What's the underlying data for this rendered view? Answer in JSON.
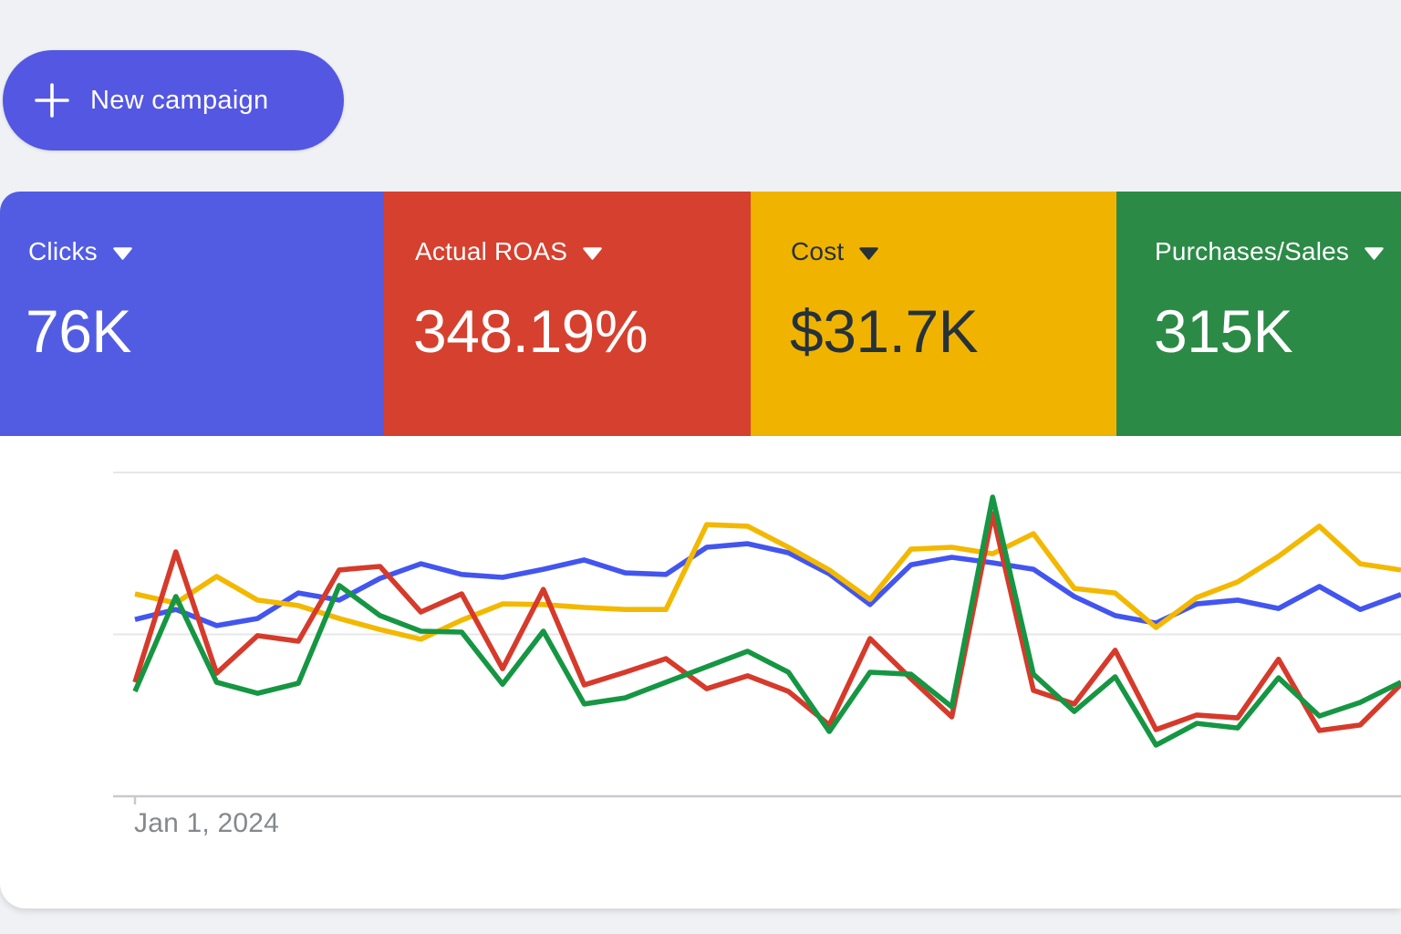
{
  "page": {
    "background": "#EFF1F4"
  },
  "new_campaign_button": {
    "label": "New campaign",
    "bg": "#5457E2"
  },
  "metric_cards": [
    {
      "id": "clicks",
      "label": "Clicks",
      "value": "76K",
      "bg": "#525CE3",
      "text_color": "#FFFFFF"
    },
    {
      "id": "actual-roas",
      "label": "Actual ROAS",
      "value": "348.19%",
      "bg": "#D6402F",
      "text_color": "#FFFFFF"
    },
    {
      "id": "cost",
      "label": "Cost",
      "value": "$31.7K",
      "bg": "#F0B400",
      "text_color": "#263238"
    },
    {
      "id": "purchases-sales",
      "label": "Purchases/Sales",
      "value": "315K",
      "bg": "#2C8A47",
      "text_color": "#FFFFFF"
    }
  ],
  "chart_data": {
    "type": "line",
    "title": "",
    "xlabel": "",
    "ylabel": "",
    "x_tick_labels": [
      "Jan 1, 2024"
    ],
    "ylim": [
      0,
      100
    ],
    "y_gridlines": [
      50,
      100
    ],
    "grid": true,
    "legend": "none",
    "series": [
      {
        "name": "Clicks",
        "color": "#4355EF",
        "values": [
          54.6,
          57.7,
          52.7,
          54.9,
          62.8,
          60.6,
          67.3,
          71.8,
          68.5,
          67.6,
          70.1,
          73.0,
          69.0,
          68.5,
          76.9,
          78.0,
          75.2,
          68.7,
          59.2,
          71.5,
          73.8,
          72.1,
          70.1,
          61.7,
          55.8,
          53.5,
          59.4,
          60.6,
          58.0,
          64.8,
          57.7,
          62.3
        ]
      },
      {
        "name": "Actual ROAS",
        "color": "#D63A2B",
        "values": [
          35.2,
          75.5,
          38.0,
          49.6,
          47.9,
          69.9,
          71.0,
          56.9,
          62.5,
          39.4,
          63.9,
          34.4,
          38.3,
          42.5,
          33.2,
          37.2,
          32.4,
          22.0,
          48.7,
          36.3,
          24.5,
          87.3,
          32.7,
          28.5,
          45.1,
          20.6,
          25.1,
          24.2,
          42.3,
          20.3,
          22.0,
          34.6
        ]
      },
      {
        "name": "Cost",
        "color": "#F3B800",
        "values": [
          62.5,
          59.7,
          67.9,
          60.6,
          58.9,
          54.9,
          51.5,
          48.5,
          54.4,
          59.4,
          59.2,
          58.3,
          57.7,
          57.7,
          83.9,
          83.4,
          76.9,
          69.9,
          60.8,
          76.3,
          76.9,
          74.9,
          81.1,
          64.2,
          62.8,
          52.1,
          61.4,
          66.2,
          74.1,
          83.4,
          71.8,
          69.9
        ]
      },
      {
        "name": "Purchases/Sales",
        "color": "#169643",
        "values": [
          32.4,
          61.7,
          35.2,
          31.8,
          34.9,
          65.1,
          55.8,
          51.0,
          50.7,
          34.6,
          51.0,
          28.5,
          30.4,
          35.2,
          40.0,
          44.8,
          38.3,
          20.0,
          38.3,
          37.7,
          27.6,
          92.4,
          37.7,
          26.2,
          36.9,
          15.8,
          22.5,
          21.1,
          36.6,
          24.8,
          29.0,
          35.2
        ]
      }
    ]
  }
}
